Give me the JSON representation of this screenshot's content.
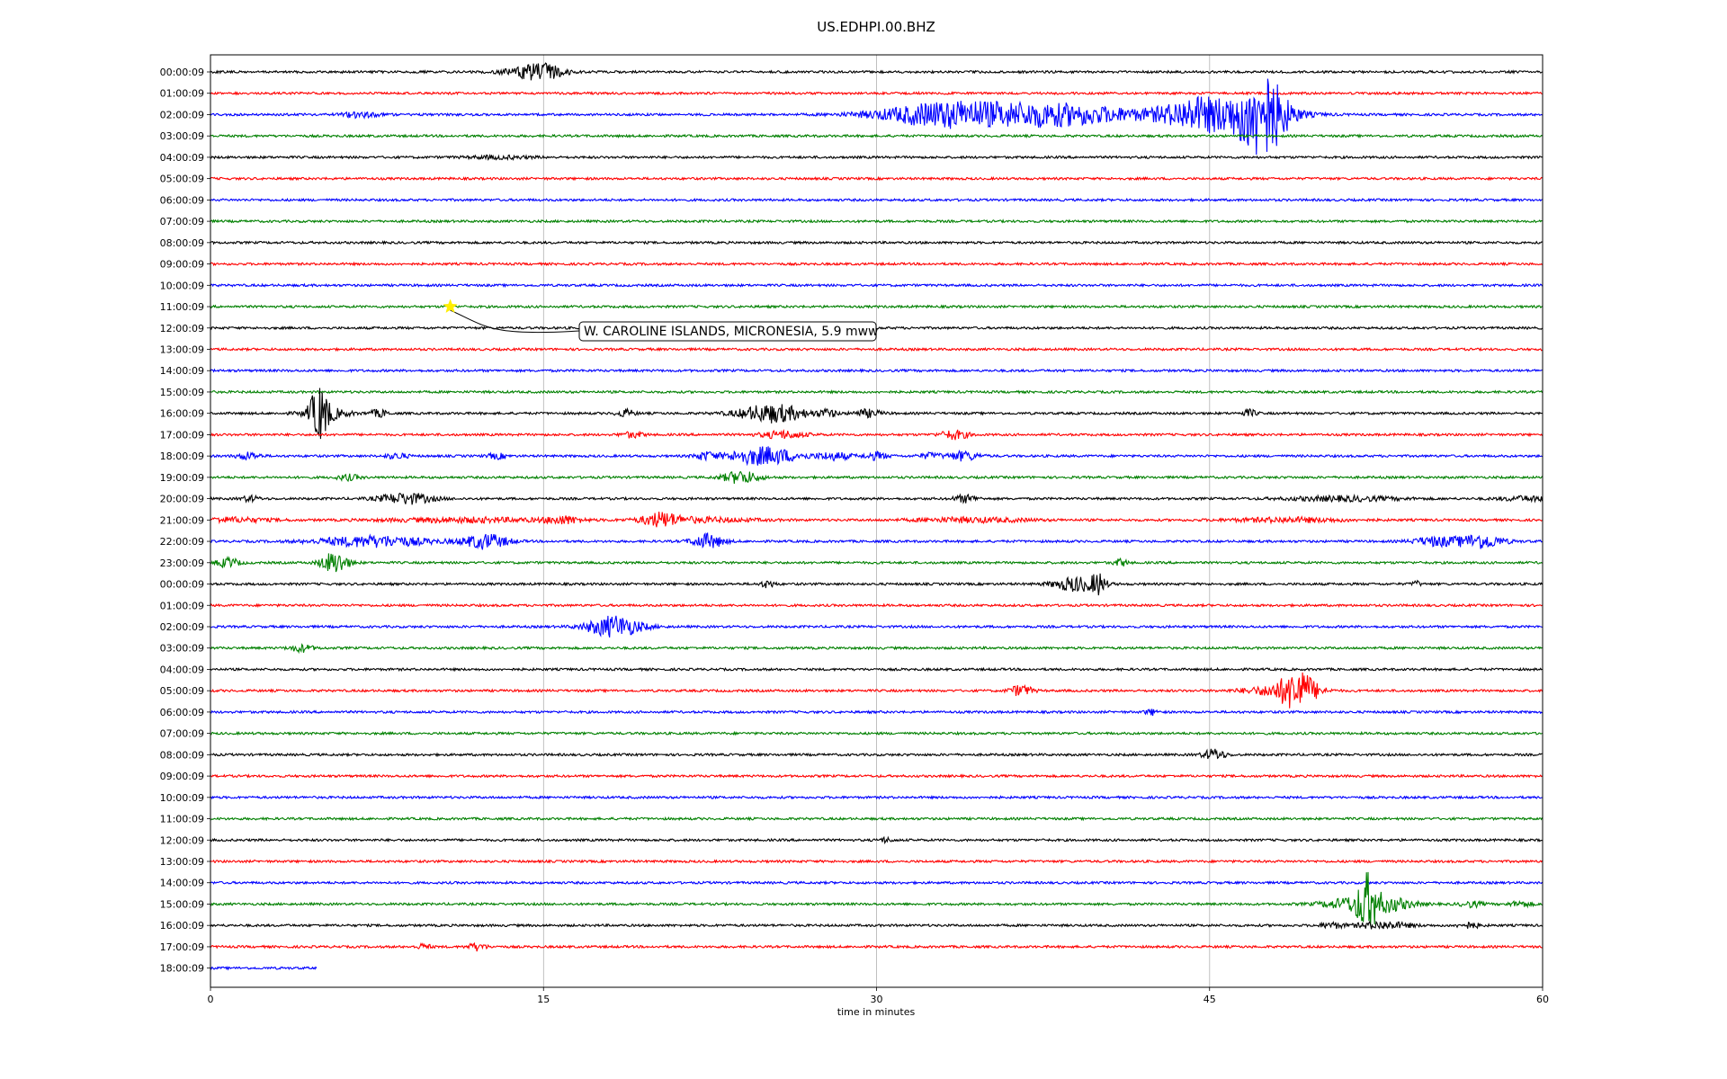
{
  "chart_data": {
    "type": "line",
    "title": "US.EDHPI.00.BHZ",
    "xlabel": "time in minutes",
    "ylabel": "",
    "xlim": [
      0,
      60
    ],
    "xticks": [
      0,
      15,
      30,
      45,
      60
    ],
    "xtick_labels": [
      "0",
      "15",
      "30",
      "45",
      "60"
    ],
    "grid": "vertical",
    "colors_cycle": [
      "#000000",
      "#ff0000",
      "#0000ff",
      "#008000"
    ],
    "rows": [
      {
        "label": "00:00:09",
        "events": [
          [
            14.5,
            6,
            1.2
          ],
          [
            15.0,
            4,
            1.0
          ]
        ]
      },
      {
        "label": "01:00:09",
        "events": []
      },
      {
        "label": "02:00:09",
        "events": [
          [
            6.7,
            3,
            0.8
          ],
          [
            33.0,
            10,
            3
          ],
          [
            34.5,
            6,
            3
          ],
          [
            37.5,
            5,
            2
          ],
          [
            39.5,
            8,
            3
          ],
          [
            44.3,
            10,
            1.5
          ],
          [
            45.5,
            8,
            2.5
          ],
          [
            47.4,
            38,
            1
          ],
          [
            46.8,
            8,
            2
          ]
        ]
      },
      {
        "label": "03:00:09",
        "events": []
      },
      {
        "label": "04:00:09",
        "events": [
          [
            13.0,
            1.5,
            1.5
          ]
        ]
      },
      {
        "label": "05:00:09",
        "events": []
      },
      {
        "label": "06:00:09",
        "events": []
      },
      {
        "label": "07:00:09",
        "events": []
      },
      {
        "label": "08:00:09",
        "events": []
      },
      {
        "label": "09:00:09",
        "events": []
      },
      {
        "label": "10:00:09",
        "events": []
      },
      {
        "label": "11:00:09",
        "events": []
      },
      {
        "label": "12:00:09",
        "events": []
      },
      {
        "label": "13:00:09",
        "events": []
      },
      {
        "label": "14:00:09",
        "events": []
      },
      {
        "label": "15:00:09",
        "events": []
      },
      {
        "label": "16:00:09",
        "events": [
          [
            4.9,
            26,
            0.4
          ],
          [
            5.2,
            6,
            1.0
          ],
          [
            7.6,
            4,
            0.4
          ],
          [
            18.7,
            4,
            0.4
          ],
          [
            25.3,
            10,
            1.5
          ],
          [
            27.8,
            4,
            0.4
          ],
          [
            29.6,
            4,
            0.6
          ],
          [
            46.8,
            4,
            0.3
          ]
        ]
      },
      {
        "label": "17:00:09",
        "events": [
          [
            19.0,
            3,
            0.5
          ],
          [
            25.8,
            4,
            1.0
          ],
          [
            33.5,
            5,
            0.6
          ]
        ]
      },
      {
        "label": "18:00:09",
        "events": [
          [
            1.7,
            4,
            0.5
          ],
          [
            8.4,
            3,
            0.5
          ],
          [
            12.9,
            3,
            0.4
          ],
          [
            22.3,
            4,
            0.5
          ],
          [
            24.9,
            10,
            1.5
          ],
          [
            28.1,
            4,
            0.8
          ],
          [
            30.0,
            4,
            0.5
          ],
          [
            32.4,
            3,
            0.5
          ],
          [
            33.9,
            5,
            0.7
          ]
        ]
      },
      {
        "label": "19:00:09",
        "events": [
          [
            6.2,
            3,
            0.5
          ],
          [
            23.9,
            7,
            0.8
          ]
        ]
      },
      {
        "label": "20:00:09",
        "events": [
          [
            1.8,
            3,
            0.4
          ],
          [
            8.8,
            6,
            1.2
          ],
          [
            34.0,
            4,
            0.5
          ],
          [
            51.0,
            2.5,
            2.5
          ],
          [
            59.3,
            2.5,
            1.2
          ]
        ]
      },
      {
        "label": "21:00:09",
        "events": [
          [
            0.9,
            2.5,
            1.8
          ],
          [
            11.6,
            2.5,
            3.5
          ],
          [
            15.9,
            4,
            0.8
          ],
          [
            20.3,
            7,
            0.8
          ],
          [
            22.0,
            2.5,
            2.5
          ],
          [
            34.3,
            2.5,
            2.5
          ],
          [
            48.6,
            2.5,
            2.5
          ]
        ]
      },
      {
        "label": "22:00:09",
        "events": [
          [
            7.4,
            6,
            2.5
          ],
          [
            12.4,
            8,
            1.0
          ],
          [
            22.4,
            8,
            0.7
          ],
          [
            55.2,
            5,
            1.0
          ],
          [
            57.2,
            8,
            1.0
          ]
        ]
      },
      {
        "label": "23:00:09",
        "events": [
          [
            0.8,
            5,
            0.5
          ],
          [
            5.6,
            12,
            0.6
          ],
          [
            41.0,
            4,
            0.3
          ]
        ]
      },
      {
        "label": "00:00:09",
        "events": [
          [
            25.1,
            4,
            0.3
          ],
          [
            39.0,
            8,
            1.0
          ],
          [
            40.0,
            10,
            0.3
          ],
          [
            54.3,
            3,
            0.2
          ]
        ]
      },
      {
        "label": "01:00:09",
        "events": []
      },
      {
        "label": "02:00:09",
        "events": [
          [
            18.2,
            12,
            1.2
          ]
        ]
      },
      {
        "label": "03:00:09",
        "events": [
          [
            4.1,
            4,
            0.5
          ]
        ]
      },
      {
        "label": "04:00:09",
        "events": []
      },
      {
        "label": "05:00:09",
        "events": [
          [
            36.5,
            6,
            0.5
          ],
          [
            48.0,
            5,
            1.5
          ],
          [
            49.0,
            20,
            0.8
          ]
        ]
      },
      {
        "label": "06:00:09",
        "events": [
          [
            42.4,
            3,
            0.3
          ]
        ]
      },
      {
        "label": "07:00:09",
        "events": []
      },
      {
        "label": "08:00:09",
        "events": [
          [
            45.2,
            6,
            0.5
          ]
        ]
      },
      {
        "label": "09:00:09",
        "events": []
      },
      {
        "label": "10:00:09",
        "events": []
      },
      {
        "label": "11:00:09",
        "events": []
      },
      {
        "label": "12:00:09",
        "events": [
          [
            30.4,
            2.5,
            0.3
          ]
        ]
      },
      {
        "label": "13:00:09",
        "events": []
      },
      {
        "label": "14:00:09",
        "events": []
      },
      {
        "label": "15:00:09",
        "events": [
          [
            51.8,
            8,
            1.5
          ],
          [
            52.1,
            24,
            0.4
          ],
          [
            53.0,
            5,
            1.2
          ],
          [
            56.8,
            3,
            0.5
          ],
          [
            59.0,
            3,
            0.5
          ]
        ]
      },
      {
        "label": "16:00:09",
        "events": [
          [
            50.5,
            3,
            0.5
          ],
          [
            52.8,
            4,
            1.2
          ],
          [
            56.7,
            3,
            0.5
          ]
        ]
      },
      {
        "label": "17:00:09",
        "events": [
          [
            9.6,
            3,
            0.3
          ],
          [
            12.0,
            4,
            0.4
          ]
        ]
      },
      {
        "label": "18:00:09",
        "events": [],
        "end_minute": 4.8
      }
    ],
    "annotations": [
      {
        "text": "W. CAROLINE ISLANDS, MICRONESIA, 5.9 mww",
        "row": 11,
        "x": 10.8
      }
    ]
  }
}
